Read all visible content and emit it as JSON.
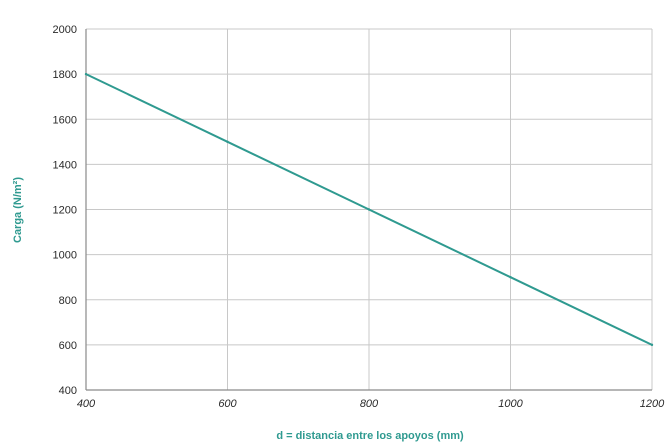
{
  "chart_data": {
    "type": "line",
    "title": "",
    "xlabel": "d = distancia entre los apoyos (mm)",
    "ylabel": "Carga (N/m²)",
    "xlim": [
      400,
      1200
    ],
    "ylim": [
      400,
      2000
    ],
    "x_ticks": [
      "400",
      "600",
      "800",
      "1000",
      "1200"
    ],
    "y_ticks": [
      "400",
      "600",
      "800",
      "1000",
      "1200",
      "1400",
      "1600",
      "1800",
      "2000"
    ],
    "grid": true,
    "series": [
      {
        "x": [
          400,
          600,
          800,
          1000,
          1200
        ],
        "y": [
          1800,
          1500,
          1200,
          900,
          600
        ]
      }
    ],
    "colors": {
      "line": "#2f9a90",
      "axis_title": "#2f9a90"
    }
  }
}
